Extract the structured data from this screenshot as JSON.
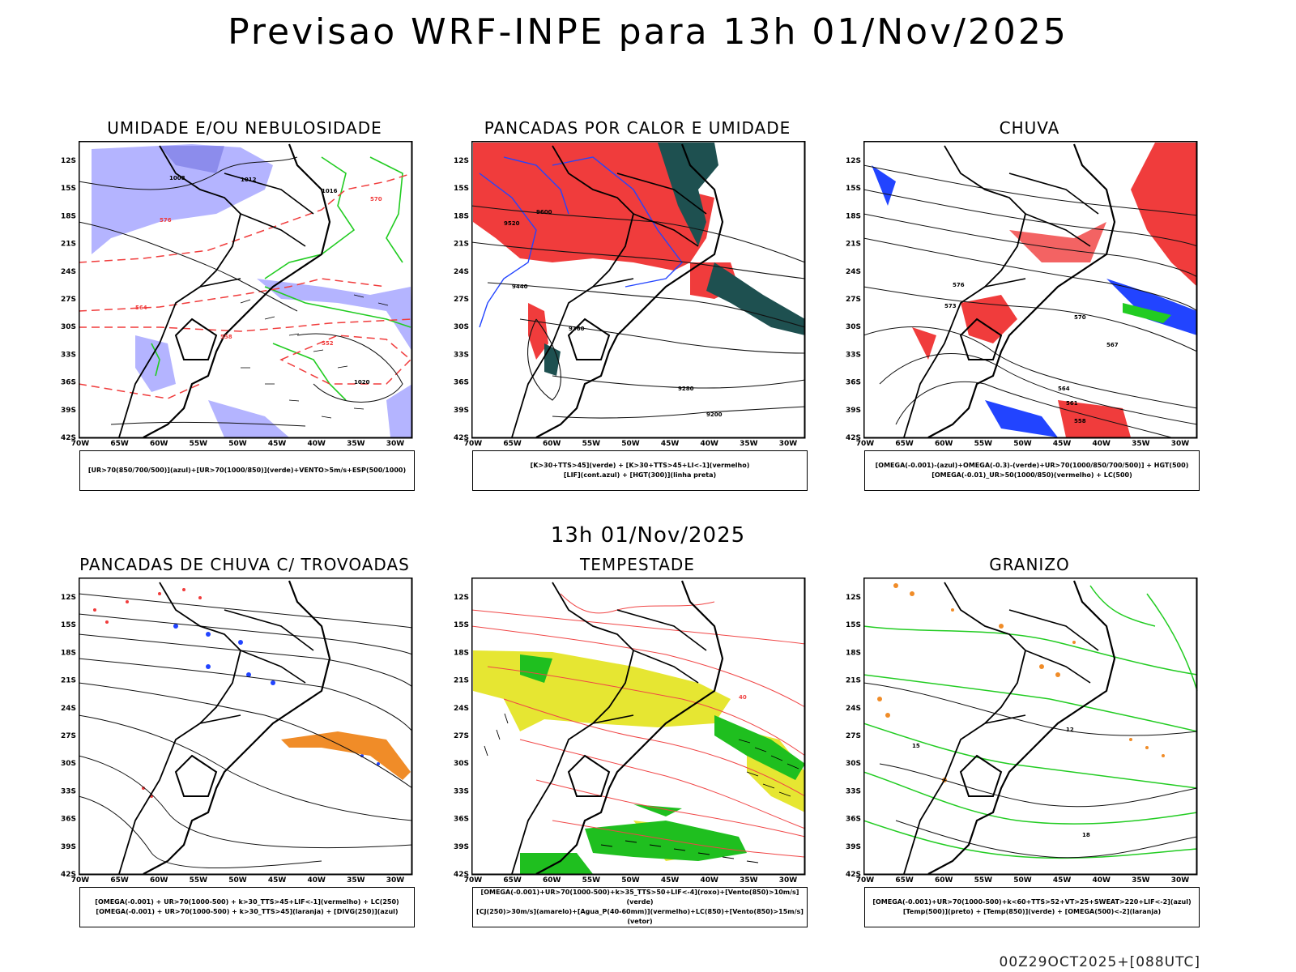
{
  "title": "Previsao WRF-INPE  para 13h 01/Nov/2025",
  "subtitle": "13h 01/Nov/2025",
  "footer": "00Z29OCT2025+[088UTC]",
  "axes": {
    "lon_labels": [
      "70W",
      "65W",
      "60W",
      "55W",
      "50W",
      "45W",
      "40W",
      "35W",
      "30W"
    ],
    "lat_labels": [
      "12S",
      "15S",
      "18S",
      "21S",
      "24S",
      "27S",
      "30S",
      "33S",
      "36S",
      "39S",
      "42S"
    ]
  },
  "panels": [
    {
      "title": "UMIDADE E/OU NEBULOSIDADE",
      "legend": [
        "[UR>70(850/700/500)](azul)+[UR>70(1000/850)](verde)+VENTO>5m/s+ESP(500/1000)"
      ],
      "contour_labels": [
        "1008",
        "1012",
        "1016",
        "1020",
        "576",
        "570",
        "564",
        "558",
        "552"
      ]
    },
    {
      "title": "PANCADAS POR CALOR E UMIDADE",
      "legend": [
        "[K>30+TTS>45](verde) + [K>30+TTS>45+LI<-1](vermelho)",
        "[LIF](cont.azul) + [HGT(300)](linha preta)"
      ],
      "contour_labels": [
        "9600",
        "9520",
        "9440",
        "9360",
        "9280",
        "9200"
      ]
    },
    {
      "title": "CHUVA",
      "legend": [
        "[OMEGA(-0.001)-(azul)+OMEGA(-0.3)-(verde)+UR>70(1000/850/700/500)] + HGT(500)",
        "[OMEGA(-0.01)_UR>50(1000/850)(vermelho) + LC(500)"
      ],
      "contour_labels": [
        "576",
        "573",
        "570",
        "567",
        "564",
        "561",
        "558"
      ]
    },
    {
      "title": "PANCADAS DE CHUVA C/ TROVOADAS",
      "legend": [
        "[OMEGA(-0.001) + UR>70(1000-500) + k>30_TTS>45+LIF<-1](vermelho) + LC(250)",
        "[OMEGA(-0.001) + UR>70(1000-500) + k>30_TTS>45](laranja) + [DIVG(250)](azul)"
      ],
      "contour_labels": []
    },
    {
      "title": "TEMPESTADE",
      "legend": [
        "[OMEGA(-0.001)+UR>70(1000-500)+k>35_TTS>50+LIF<-4](roxo)+[Vento(850)>10m/s](verde)",
        "[CJ(250)>30m/s](amarelo)+[Agua_P(40-60mm)](vermelho)+LC(850)+[Vento(850)>15m/s](vetor)"
      ],
      "contour_labels": [
        "40"
      ]
    },
    {
      "title": "GRANIZO",
      "legend": [
        "[OMEGA(-0.001)+UR>70(1000-500)+k<60+TTS>52+VT>25+SWEAT>220+LIF<-2](azul)",
        "[Temp(500)](preto) + [Temp(850)](verde) + [OMEGA(500)<-2](laranja)"
      ],
      "contour_labels": [
        "12",
        "15",
        "18"
      ]
    }
  ],
  "colors": {
    "humidity_high": "#b4b4ff",
    "humidity_low": "#22cc22",
    "red_area": "#f03c3c",
    "teal_area": "#1e5050",
    "lif_blue": "#2244ff",
    "yellow_jet": "#e6e632",
    "wind_green": "#1fbf1f",
    "orange": "#f08c28",
    "purple": "#aa22cc"
  }
}
